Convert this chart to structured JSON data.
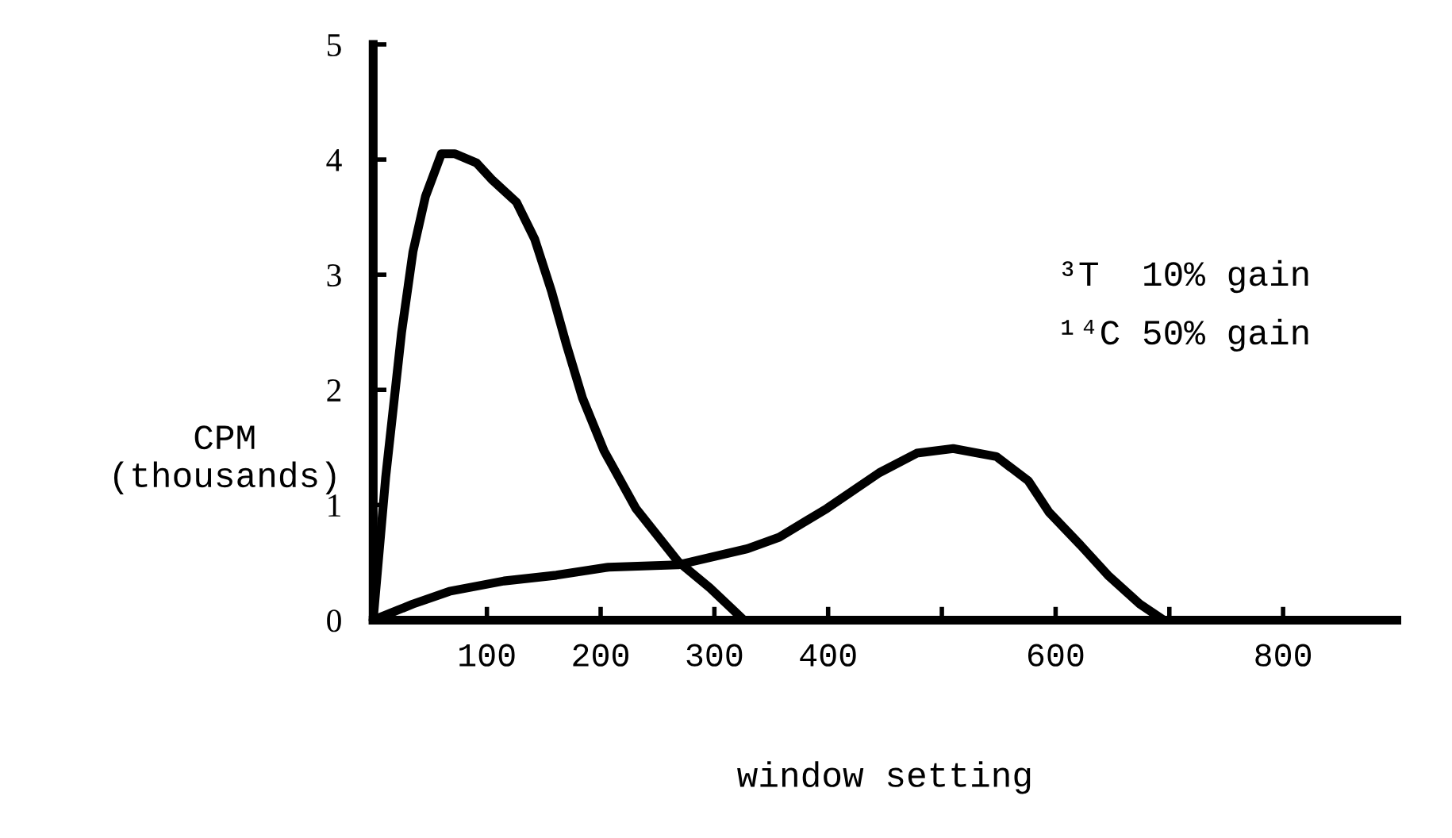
{
  "chart_data": {
    "type": "line",
    "xlabel": "window setting",
    "ylabel": "CPM\n(thousands)",
    "annotations": [
      "³T  10% gain",
      "¹⁴C 50% gain"
    ],
    "xlim": [
      0,
      900
    ],
    "ylim": [
      0,
      5
    ],
    "xticks": [
      100,
      200,
      300,
      400,
      {
        "value": 500,
        "label": null
      },
      600,
      {
        "value": 700,
        "label": null
      },
      800
    ],
    "yticks": [
      0,
      1,
      2,
      3,
      4,
      5
    ],
    "grid": false,
    "marker": "none",
    "line_style": "solid",
    "series": [
      {
        "color": "#000000",
        "x": [
          0,
          11,
          25,
          35,
          46,
          60,
          72,
          91,
          105,
          126,
          142,
          157,
          170,
          184,
          203,
          231,
          268,
          296,
          326
        ],
        "values": [
          0,
          1.24,
          2.5,
          3.2,
          3.68,
          4.05,
          4.05,
          3.97,
          3.82,
          3.63,
          3.31,
          2.85,
          2.39,
          1.93,
          1.47,
          0.97,
          0.51,
          0.28,
          0
        ]
      },
      {
        "color": "#000000",
        "x": [
          0,
          35,
          67,
          115,
          161,
          207,
          268,
          329,
          357,
          399,
          445,
          478,
          510,
          548,
          576,
          594,
          622,
          646,
          674,
          695
        ],
        "values": [
          0,
          0.14,
          0.25,
          0.34,
          0.39,
          0.46,
          0.48,
          0.62,
          0.72,
          0.97,
          1.28,
          1.45,
          1.49,
          1.42,
          1.21,
          0.94,
          0.65,
          0.39,
          0.14,
          0
        ]
      }
    ]
  }
}
